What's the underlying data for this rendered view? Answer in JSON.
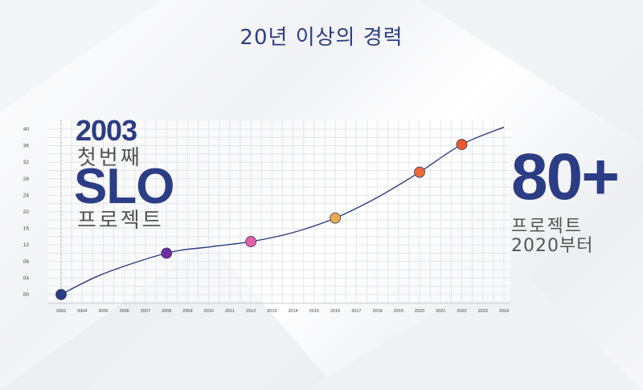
{
  "page": {
    "title": "20년 이상의 경력"
  },
  "highlight_left": {
    "year": "2003",
    "first": "첫번째",
    "brand": "SLO",
    "projects": "프로젝트"
  },
  "highlight_right": {
    "count": "80+",
    "projects": "프로젝트",
    "since": "2020부터"
  },
  "colors": {
    "brand": "#2b3d84",
    "line": "#2b3d84",
    "grid": "#e3e5eb"
  },
  "chart_data": {
    "type": "line",
    "x_ticks": [
      "2003",
      "2004",
      "2005",
      "2006",
      "2007",
      "2008",
      "2009",
      "2010",
      "2011",
      "2012",
      "2013",
      "2014",
      "2015",
      "2016",
      "2017",
      "2018",
      "2019",
      "2020",
      "2021",
      "2022",
      "2023",
      "2024"
    ],
    "y_ticks": [
      "00",
      "04",
      "08",
      "12",
      "16",
      "20",
      "24",
      "28",
      "32",
      "36",
      "40"
    ],
    "ylim": [
      0,
      40
    ],
    "xlim": [
      2003,
      2024
    ],
    "grid": true,
    "series": [
      {
        "curve": [
          [
            2003,
            0
          ],
          [
            2005,
            5
          ],
          [
            2008,
            10
          ],
          [
            2010,
            11.5
          ],
          [
            2012,
            12.8
          ],
          [
            2014,
            15
          ],
          [
            2016,
            18.5
          ],
          [
            2018,
            23.5
          ],
          [
            2020,
            29.6
          ],
          [
            2022,
            36.3
          ],
          [
            2024,
            40.5
          ]
        ],
        "markers": [
          {
            "x": 2003,
            "y": 0,
            "color": "#2b3d84"
          },
          {
            "x": 2008,
            "y": 10,
            "color": "#6b2fa0"
          },
          {
            "x": 2012,
            "y": 12.8,
            "color": "#e35fa8"
          },
          {
            "x": 2016,
            "y": 18.5,
            "color": "#eaa94b"
          },
          {
            "x": 2020,
            "y": 29.6,
            "color": "#ec6a3a"
          },
          {
            "x": 2022,
            "y": 36.3,
            "color": "#ea5a2c"
          }
        ]
      }
    ],
    "reference_line": {
      "x": 2003,
      "style": "dotted"
    }
  }
}
